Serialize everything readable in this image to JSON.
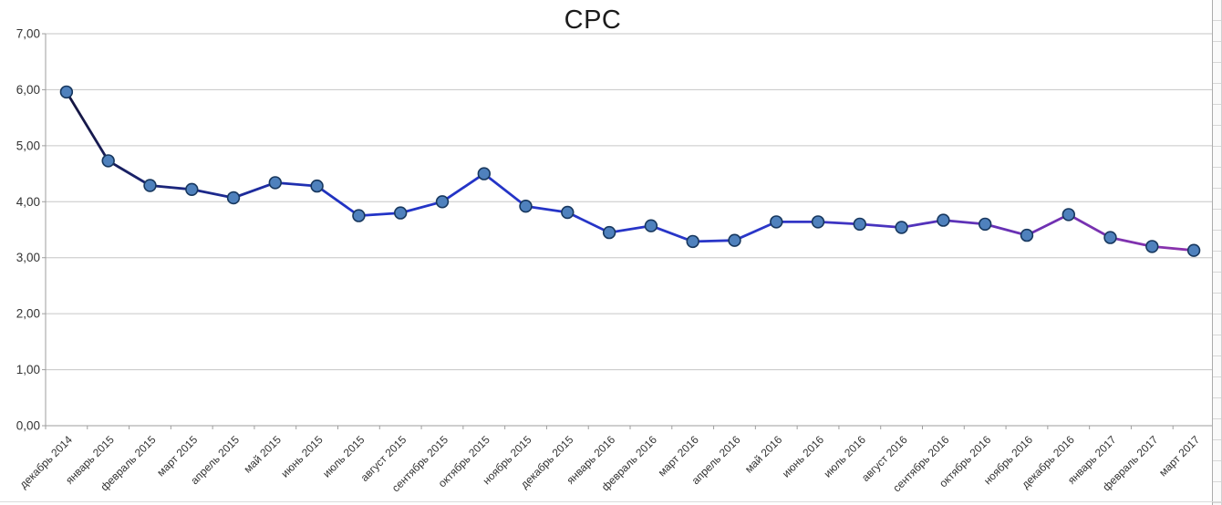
{
  "chart_data": {
    "type": "line",
    "title": "CPC",
    "categories": [
      "декабрь 2014",
      "январь 2015",
      "февраль 2015",
      "март 2015",
      "апрель 2015",
      "май 2015",
      "июнь 2015",
      "июль 2015",
      "август 2015",
      "сентябрь 2015",
      "октябрь 2015",
      "ноябрь 2015",
      "декабрь 2015",
      "январь 2016",
      "февраль 2016",
      "март 2016",
      "апрель 2016",
      "май 2016",
      "июнь 2016",
      "июль 2016",
      "август 2016",
      "сентябрь 2016",
      "октябрь 2016",
      "ноябрь 2016",
      "декабрь 2016",
      "январь 2017",
      "февраль 2017",
      "март 2017"
    ],
    "series": [
      {
        "name": "CPC",
        "values": [
          5.96,
          4.73,
          4.29,
          4.22,
          4.07,
          4.34,
          4.28,
          3.75,
          3.8,
          4.0,
          4.5,
          3.92,
          3.81,
          3.45,
          3.57,
          3.29,
          3.31,
          3.64,
          3.64,
          3.6,
          3.54,
          3.67,
          3.6,
          3.4,
          3.77,
          3.36,
          3.2,
          3.13
        ]
      }
    ],
    "xlabel": "",
    "ylabel": "",
    "ylim": [
      0,
      7
    ],
    "ytick_labels": [
      "0,00",
      "1,00",
      "2,00",
      "3,00",
      "4,00",
      "5,00",
      "6,00",
      "7,00"
    ],
    "grid": true,
    "legend_position": "none",
    "x_label_rotation_deg": 45,
    "colors": {
      "line_gradient": [
        {
          "offset": 0.0,
          "color": "#15153E"
        },
        {
          "offset": 0.07,
          "color": "#1A2470"
        },
        {
          "offset": 0.25,
          "color": "#2133C6"
        },
        {
          "offset": 0.62,
          "color": "#2A36C8"
        },
        {
          "offset": 0.82,
          "color": "#6531B5"
        },
        {
          "offset": 1.0,
          "color": "#8C32AC"
        }
      ],
      "marker_fill": "#4F81BD",
      "marker_stroke": "#17375E",
      "gridline": "#C6C6C6",
      "axis": "#9E9E9E",
      "tick_label": "#333333",
      "title": "#1C1C1C"
    }
  }
}
